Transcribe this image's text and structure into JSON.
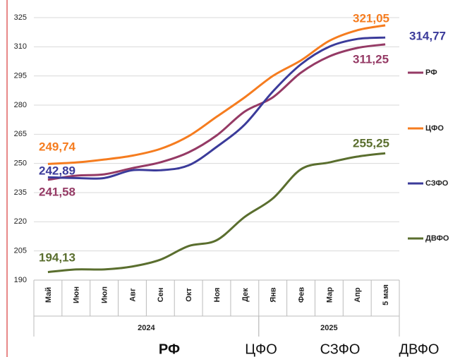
{
  "chart_data": {
    "type": "line",
    "categories": [
      "Май",
      "Июн",
      "Июл",
      "Авг",
      "Сен",
      "Окт",
      "Ноя",
      "Дек",
      "Янв",
      "Фев",
      "Мар",
      "Апр",
      "5 мая"
    ],
    "groups": [
      {
        "label": "2024",
        "count": 8
      },
      {
        "label": "2025",
        "count": 5
      }
    ],
    "ylim": [
      190,
      325
    ],
    "yticks": [
      190,
      205,
      220,
      235,
      250,
      265,
      280,
      295,
      310,
      325
    ],
    "grid": true,
    "series": [
      {
        "name": "РФ",
        "color": "#953a65",
        "values": [
          241.58,
          243.7,
          244.4,
          247.6,
          250.6,
          255.7,
          264.4,
          276.7,
          284,
          296.7,
          305,
          309.4,
          311.25
        ],
        "value_labels": [
          "241,58",
          null,
          null,
          null,
          null,
          null,
          null,
          null,
          null,
          null,
          null,
          null,
          "311,25"
        ]
      },
      {
        "name": "ЦФО",
        "color": "#f57c1f",
        "values": [
          249.74,
          250.5,
          252,
          254,
          257.5,
          264,
          274,
          284,
          295,
          303,
          313,
          318.5,
          321.05
        ],
        "value_labels": [
          "249,74",
          null,
          null,
          null,
          null,
          null,
          null,
          null,
          null,
          null,
          null,
          null,
          "321,05"
        ]
      },
      {
        "name": "СЗФО",
        "color": "#3b3b9a",
        "values": [
          242.89,
          242.5,
          242.5,
          246.5,
          246.5,
          249,
          258.5,
          270,
          287,
          301,
          310,
          314,
          314.77
        ],
        "value_labels": [
          "242,89",
          null,
          null,
          null,
          null,
          null,
          null,
          null,
          null,
          null,
          null,
          null,
          "314,77"
        ]
      },
      {
        "name": "ДВФО",
        "color": "#5a6e2e",
        "values": [
          194.13,
          195.5,
          195.5,
          197,
          200.5,
          207.5,
          210.5,
          222.5,
          232,
          247,
          250.5,
          253.5,
          255.25
        ],
        "value_labels": [
          "194,13",
          null,
          null,
          null,
          null,
          null,
          null,
          null,
          null,
          null,
          null,
          null,
          "255,25"
        ]
      }
    ],
    "tabs": [
      "РФ",
      "ЦФО",
      "СЗФО",
      "ДВФО"
    ]
  }
}
